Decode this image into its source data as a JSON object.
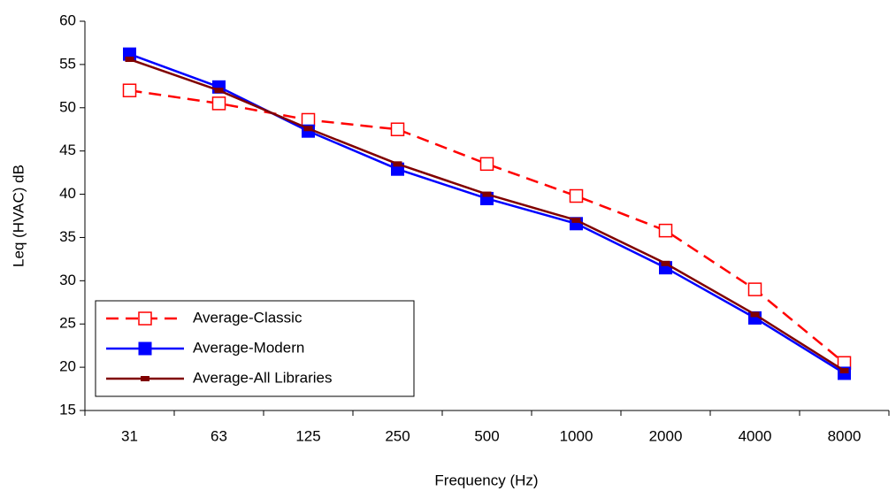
{
  "chart_data": {
    "type": "line",
    "x_label": "Frequency (Hz)",
    "y_label": "Leq (HVAC)  dB",
    "categories": [
      "31",
      "63",
      "125",
      "250",
      "500",
      "1000",
      "2000",
      "4000",
      "8000"
    ],
    "series": [
      {
        "name": "Average-Classic",
        "color": "#ff0000",
        "line_style": "dashed",
        "marker": "hollow-square",
        "values": [
          52.0,
          50.5,
          48.6,
          47.5,
          43.5,
          39.8,
          35.8,
          29.0,
          20.5
        ]
      },
      {
        "name": "Average-Modern",
        "color": "#0000ff",
        "line_style": "solid",
        "marker": "filled-square",
        "values": [
          56.2,
          52.4,
          47.3,
          42.9,
          39.5,
          36.6,
          31.5,
          25.7,
          19.3
        ]
      },
      {
        "name": "Average-All Libraries",
        "color": "#800000",
        "line_style": "solid",
        "marker": "small-dash",
        "values": [
          55.6,
          52.0,
          47.6,
          43.5,
          40.0,
          37.0,
          32.0,
          26.1,
          19.6
        ]
      }
    ],
    "ylim": [
      15,
      60
    ],
    "yticks": [
      15,
      20,
      25,
      30,
      35,
      40,
      45,
      50,
      55,
      60
    ],
    "grid": false,
    "legend": "lower-left"
  }
}
